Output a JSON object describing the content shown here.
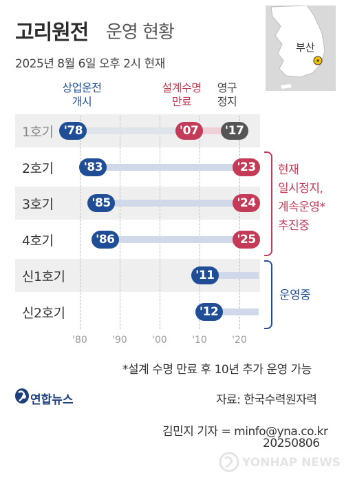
{
  "header": {
    "title_bold": "고리원전",
    "title_light": "운영 현황",
    "date": "2025년 8월 6일 오후 2시 현재"
  },
  "map": {
    "city_label": "부산"
  },
  "legend": {
    "blue": [
      "상업운전",
      "개시"
    ],
    "red": [
      "설계수명",
      "만료"
    ],
    "gray": [
      "영구",
      "정지"
    ]
  },
  "x_ticks": [
    "'80",
    "'90",
    "'00",
    "'10",
    "'20"
  ],
  "annotations": {
    "red": [
      "현재",
      "일시정지,",
      "계속운영*",
      "추진중"
    ],
    "blue": "운영중"
  },
  "footnote": "*설계 수명 만료 후 10년 추가 운영 가능",
  "logo": "연합뉴스",
  "source": "자료: 한국수력원자력",
  "credit": "김민지 기자 = minfo@yna.co.kr",
  "credit_date": "20250806",
  "watermark": "YONHAP NEWS",
  "colors": {
    "blue": "#1f4e96",
    "red": "#c43b57",
    "gray": "#555555"
  },
  "chart_data": {
    "type": "timeline",
    "title": "고리원전 운영 현황",
    "subtitle": "2025년 8월 6일 오후 2시 현재",
    "x_range": [
      1975,
      2025
    ],
    "x_ticks": [
      1980,
      1990,
      2000,
      2010,
      2020
    ],
    "grid": true,
    "units": [
      {
        "name": "1호기",
        "commercial_start": "'78",
        "design_end": "'07",
        "permanent_stop": "'17",
        "status": "영구정지"
      },
      {
        "name": "2호기",
        "commercial_start": "'83",
        "design_end": "'23",
        "status": "일시정지"
      },
      {
        "name": "3호기",
        "commercial_start": "'85",
        "design_end": "'24",
        "status": "일시정지"
      },
      {
        "name": "4호기",
        "commercial_start": "'86",
        "design_end": "'25",
        "status": "일시정지"
      },
      {
        "name": "신1호기",
        "commercial_start": "'11",
        "status": "운영중"
      },
      {
        "name": "신2호기",
        "commercial_start": "'12",
        "status": "운영중"
      }
    ]
  }
}
